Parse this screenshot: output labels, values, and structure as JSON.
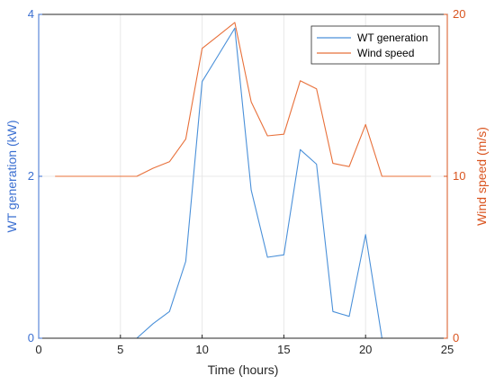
{
  "chart_data": {
    "type": "line",
    "xlabel": "Time (hours)",
    "ylabel_left": "WT generation (kW)",
    "ylabel_right": "Wind speed (m/s)",
    "xlim": [
      0,
      25
    ],
    "ylim_left": [
      0,
      4
    ],
    "ylim_right": [
      0,
      20
    ],
    "xticks": [
      "0",
      "5",
      "10",
      "15",
      "20",
      "25"
    ],
    "yticks_left": [
      "0",
      "2",
      "4"
    ],
    "yticks_right": [
      "0",
      "10",
      "20"
    ],
    "grid": true,
    "legend_position": "top-right",
    "x": [
      1,
      2,
      3,
      4,
      5,
      6,
      7,
      8,
      9,
      10,
      11,
      12,
      13,
      14,
      15,
      16,
      17,
      18,
      19,
      20,
      21,
      22,
      23,
      24
    ],
    "series": [
      {
        "name": "WT generation",
        "axis": "left",
        "color": "#4a90d9",
        "values": [
          0,
          0,
          0,
          0,
          0,
          0,
          0.18,
          0.33,
          0.95,
          3.17,
          3.5,
          3.83,
          1.83,
          1.0,
          1.03,
          2.33,
          2.15,
          0.33,
          0.27,
          1.28,
          0,
          0,
          0,
          0
        ]
      },
      {
        "name": "Wind speed",
        "axis": "right",
        "color": "#e8703a",
        "values": [
          10,
          10,
          10,
          10,
          10,
          10,
          10.5,
          10.9,
          12.3,
          17.9,
          18.7,
          19.5,
          14.6,
          12.5,
          12.6,
          15.9,
          15.4,
          10.8,
          10.6,
          13.2,
          10,
          10,
          10,
          10
        ]
      }
    ]
  },
  "colors": {
    "left_axis": "#3b6fd1",
    "right_axis": "#d9541f",
    "grid": "#e8e8e8",
    "frame": "#262626"
  }
}
